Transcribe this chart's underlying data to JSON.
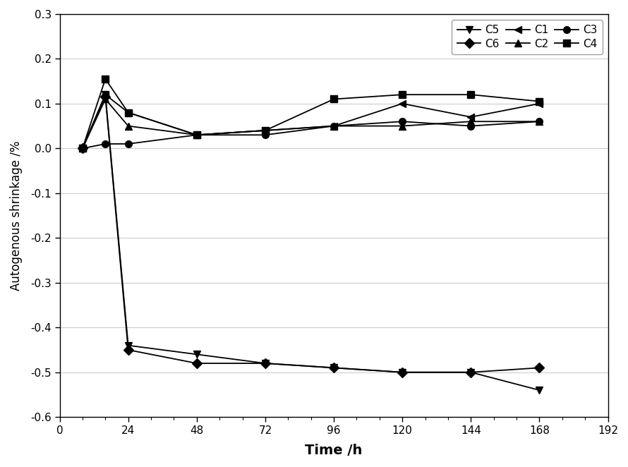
{
  "series": [
    {
      "name": "C5",
      "x": [
        8,
        16,
        24,
        48,
        72,
        96,
        120,
        144,
        168
      ],
      "y": [
        0.0,
        0.12,
        -0.44,
        -0.46,
        -0.48,
        -0.49,
        -0.5,
        -0.5,
        -0.54
      ],
      "marker": "v",
      "label": "C5"
    },
    {
      "name": "C6",
      "x": [
        8,
        16,
        24,
        48,
        72,
        96,
        120,
        144,
        168
      ],
      "y": [
        0.0,
        0.115,
        -0.45,
        -0.48,
        -0.48,
        -0.49,
        -0.5,
        -0.5,
        -0.49
      ],
      "marker": "D",
      "label": "C6"
    },
    {
      "name": "C1",
      "x": [
        8,
        16,
        24,
        48,
        72,
        96,
        120,
        144,
        168
      ],
      "y": [
        0.0,
        0.12,
        0.08,
        0.03,
        0.04,
        0.05,
        0.1,
        0.07,
        0.1
      ],
      "marker": "<",
      "label": "C1"
    },
    {
      "name": "C2",
      "x": [
        8,
        16,
        24,
        48,
        72,
        96,
        120,
        144,
        168
      ],
      "y": [
        0.0,
        0.11,
        0.05,
        0.03,
        0.04,
        0.05,
        0.05,
        0.06,
        0.06
      ],
      "marker": "^",
      "label": "C2"
    },
    {
      "name": "C3",
      "x": [
        8,
        16,
        24,
        48,
        72,
        96,
        120,
        144,
        168
      ],
      "y": [
        0.0,
        0.01,
        0.01,
        0.03,
        0.03,
        0.05,
        0.06,
        0.05,
        0.06
      ],
      "marker": "o",
      "label": "C3"
    },
    {
      "name": "C4",
      "x": [
        8,
        16,
        24,
        48,
        72,
        96,
        120,
        144,
        168
      ],
      "y": [
        0.0,
        0.155,
        0.08,
        0.03,
        0.04,
        0.11,
        0.12,
        0.12,
        0.105
      ],
      "marker": "s",
      "label": "C4"
    }
  ],
  "legend_order": [
    "C5",
    "C6",
    "C1",
    "C2",
    "C3",
    "C4"
  ],
  "xlabel": "Time /h",
  "ylabel": "Autogenous shrinkage /%",
  "xlim": [
    0,
    192
  ],
  "ylim": [
    -0.6,
    0.3
  ],
  "xticks": [
    0,
    24,
    48,
    72,
    96,
    120,
    144,
    168,
    192
  ],
  "yticks": [
    -0.6,
    -0.5,
    -0.4,
    -0.3,
    -0.2,
    -0.1,
    0.0,
    0.1,
    0.2,
    0.3
  ],
  "color": "#000000",
  "figsize": [
    8.9,
    6.62
  ],
  "dpi": 100,
  "markersize": 7,
  "linewidth": 1.3
}
